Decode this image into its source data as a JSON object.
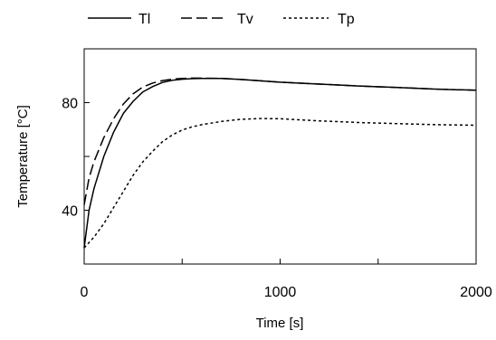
{
  "chart_data": {
    "type": "line",
    "xlabel": "Time [s]",
    "ylabel": "Temperature [°C]",
    "xlim": [
      0,
      2000
    ],
    "ylim": [
      20,
      100
    ],
    "xticks": [
      0,
      500,
      1000,
      1500,
      2000
    ],
    "xtick_labels": [
      "0",
      "",
      "1000",
      "",
      "2000"
    ],
    "yticks": [
      40,
      60,
      80
    ],
    "ytick_labels": [
      "40",
      "",
      "80"
    ],
    "grid": false,
    "legend_position": "top",
    "series": [
      {
        "name": "Tl",
        "style": "solid",
        "color": "#000000",
        "x": [
          0,
          25,
          50,
          100,
          150,
          200,
          250,
          300,
          350,
          400,
          450,
          500,
          550,
          600,
          700,
          800,
          900,
          1000,
          1200,
          1400,
          1600,
          1800,
          2000
        ],
        "y": [
          26,
          40,
          48,
          60,
          69,
          76,
          80.5,
          84,
          86,
          87.5,
          88.3,
          88.7,
          88.9,
          89,
          89,
          88.6,
          88.1,
          87.6,
          86.9,
          86.2,
          85.6,
          85,
          84.6
        ]
      },
      {
        "name": "Tv",
        "style": "dashed",
        "color": "#000000",
        "x": [
          0,
          25,
          50,
          100,
          150,
          200,
          250,
          300,
          350,
          400,
          450,
          500,
          550,
          600,
          700,
          800,
          900,
          1000,
          1200,
          1400,
          1600,
          1800,
          2000
        ],
        "y": [
          42,
          52,
          58,
          67,
          74,
          79.5,
          83.3,
          85.8,
          87.3,
          88.2,
          88.7,
          89,
          89.1,
          89.1,
          89,
          88.6,
          88.1,
          87.6,
          86.9,
          86.2,
          85.6,
          85,
          84.6
        ]
      },
      {
        "name": "Tp",
        "style": "dotted",
        "color": "#000000",
        "x": [
          0,
          50,
          100,
          150,
          200,
          250,
          300,
          350,
          400,
          450,
          500,
          550,
          600,
          700,
          800,
          900,
          1000,
          1100,
          1200,
          1400,
          1600,
          1800,
          2000
        ],
        "y": [
          26,
          30,
          35,
          41,
          47,
          53,
          58,
          62,
          65.5,
          68,
          69.8,
          71,
          71.8,
          73,
          73.8,
          74.1,
          74,
          73.6,
          73.2,
          72.6,
          72.2,
          71.8,
          71.6
        ]
      }
    ]
  }
}
